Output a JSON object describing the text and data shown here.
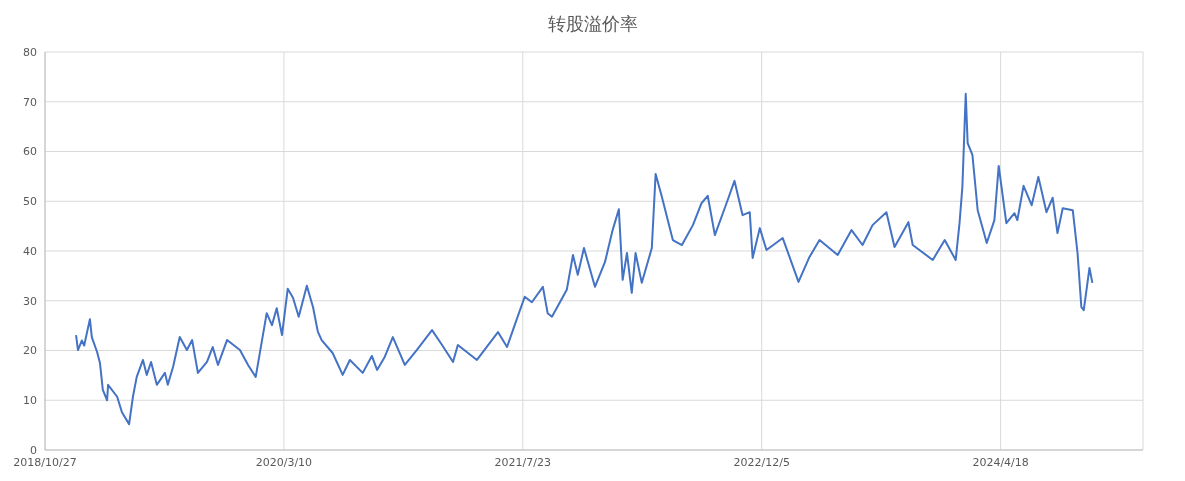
{
  "chart_data": {
    "type": "line",
    "title": "转股溢价率",
    "x": [
      "2018-12-31",
      "2019-01-04",
      "2019-01-12",
      "2019-01-17",
      "2019-01-29",
      "2019-02-02",
      "2019-02-13",
      "2019-02-19",
      "2019-02-25",
      "2019-03-06",
      "2019-03-08",
      "2019-03-27",
      "2019-04-06",
      "2019-04-21",
      "2019-04-29",
      "2019-05-07",
      "2019-05-20",
      "2019-05-28",
      "2019-06-06",
      "2019-06-18",
      "2019-07-05",
      "2019-07-11",
      "2019-07-22",
      "2019-08-05",
      "2019-08-20",
      "2019-08-31",
      "2019-09-12",
      "2019-10-01",
      "2019-10-13",
      "2019-10-24",
      "2019-11-12",
      "2019-12-09",
      "2019-12-26",
      "2020-01-11",
      "2020-02-03",
      "2020-02-14",
      "2020-02-24",
      "2020-03-06",
      "2020-03-18",
      "2020-03-29",
      "2020-04-10",
      "2020-04-27",
      "2020-05-10",
      "2020-05-20",
      "2020-05-28",
      "2020-06-20",
      "2020-07-11",
      "2020-07-26",
      "2020-08-22",
      "2020-09-10",
      "2020-09-21",
      "2020-10-07",
      "2020-10-24",
      "2020-11-18",
      "2020-12-13",
      "2021-01-14",
      "2021-02-04",
      "2021-02-27",
      "2021-03-09",
      "2021-04-18",
      "2021-06-01",
      "2021-06-20",
      "2021-07-06",
      "2021-07-27",
      "2021-08-11",
      "2021-09-03",
      "2021-09-13",
      "2021-09-22",
      "2021-10-23",
      "2021-11-05",
      "2021-11-15",
      "2021-11-28",
      "2021-12-21",
      "2022-01-11",
      "2022-01-27",
      "2022-02-09",
      "2022-02-17",
      "2022-02-26",
      "2022-03-08",
      "2022-03-16",
      "2022-03-29",
      "2022-04-19",
      "2022-04-27",
      "2022-05-10",
      "2022-06-02",
      "2022-06-21",
      "2022-07-14",
      "2022-08-01",
      "2022-08-14",
      "2022-08-29",
      "2022-09-25",
      "2022-10-09",
      "2022-10-26",
      "2022-11-10",
      "2022-11-16",
      "2022-12-01",
      "2022-12-15",
      "2023-01-18",
      "2023-02-20",
      "2023-03-15",
      "2023-04-05",
      "2023-05-13",
      "2023-06-11",
      "2023-07-04",
      "2023-07-25",
      "2023-08-23",
      "2023-09-09",
      "2023-10-08",
      "2023-10-17",
      "2023-11-28",
      "2023-12-23",
      "2024-01-15",
      "2024-01-23",
      "2024-01-29",
      "2024-02-05",
      "2024-02-09",
      "2024-02-19",
      "2024-03-01",
      "2024-03-20",
      "2024-04-05",
      "2024-04-14",
      "2024-04-30",
      "2024-05-17",
      "2024-05-23",
      "2024-06-05",
      "2024-06-22",
      "2024-07-06",
      "2024-07-23",
      "2024-08-05",
      "2024-08-15",
      "2024-08-26",
      "2024-09-16",
      "2024-09-26",
      "2024-10-04",
      "2024-10-09",
      "2024-10-21",
      "2024-10-27"
    ],
    "series": [
      {
        "color": "#4472c4",
        "values": [
          23.1,
          20.1,
          22,
          21,
          26.3,
          22.7,
          19.7,
          17.5,
          12.1,
          10,
          13.1,
          10.7,
          7.6,
          5.2,
          10.7,
          14.7,
          18.1,
          15.1,
          17.7,
          13.1,
          15.5,
          13.1,
          16.7,
          22.7,
          20.1,
          22.1,
          15.5,
          17.7,
          20.7,
          17.1,
          22.1,
          20.1,
          17.1,
          14.7,
          27.5,
          25.1,
          28.5,
          23.1,
          32.4,
          30.6,
          26.8,
          33,
          28.7,
          23.8,
          22.1,
          19.5,
          15.1,
          18.1,
          15.5,
          18.9,
          16.1,
          18.7,
          22.7,
          17.1,
          20.1,
          24.1,
          21.1,
          17.7,
          21.1,
          18.1,
          23.7,
          20.7,
          25.1,
          30.8,
          29.7,
          32.8,
          27.5,
          26.8,
          32.2,
          39.2,
          35.2,
          40.6,
          32.8,
          37.8,
          44.2,
          48.4,
          34.2,
          39.6,
          31.6,
          39.6,
          33.6,
          40.6,
          55.5,
          50.9,
          42.2,
          41.2,
          45.2,
          49.6,
          51.1,
          43.2,
          50.3,
          54.1,
          47.2,
          47.8,
          38.6,
          44.6,
          40.2,
          42.6,
          33.8,
          38.8,
          42.2,
          39.2,
          44.2,
          41.2,
          45.2,
          47.8,
          40.8,
          45.8,
          41.2,
          38.2,
          42.2,
          38.2,
          45.6,
          52.9,
          71.6,
          61.7,
          59.3,
          48.2,
          41.6,
          46.2,
          57.1,
          45.6,
          47.6,
          46.2,
          53.1,
          49.2,
          54.9,
          47.8,
          50.7,
          43.6,
          48.6,
          48.2,
          39.6,
          28.7,
          28.1,
          36.6,
          33.6
        ]
      }
    ],
    "xlim": [
      "2018-10-27",
      "2025-02-10"
    ],
    "xticks": [
      {
        "value": "2018-10-27",
        "label": "2018/10/27"
      },
      {
        "value": "2020-03-10",
        "label": "2020/3/10"
      },
      {
        "value": "2021-07-23",
        "label": "2021/7/23"
      },
      {
        "value": "2022-12-05",
        "label": "2022/12/5"
      },
      {
        "value": "2024-04-18",
        "label": "2024/4/18"
      }
    ],
    "ylim": [
      0,
      80
    ],
    "yticks": [
      0,
      10,
      20,
      30,
      40,
      50,
      60,
      70,
      80
    ],
    "grid": true,
    "marker": "none",
    "line_style": "solid"
  }
}
